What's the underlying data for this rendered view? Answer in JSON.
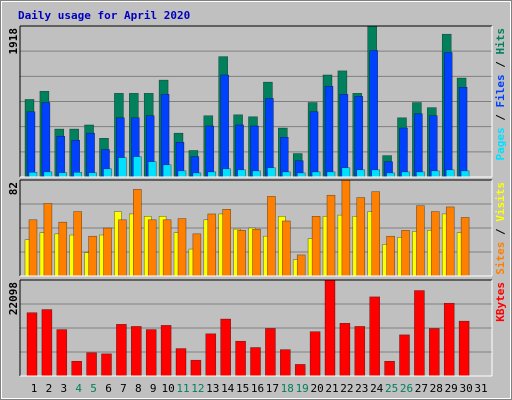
{
  "chart_data": [
    {
      "type": "bar",
      "title": "Daily usage for April 2020",
      "ylim": [
        0,
        1918
      ],
      "yticks": [
        1918
      ],
      "series": [
        {
          "name": "Hits",
          "color": "#00805c",
          "values": [
            985,
            1089,
            609,
            609,
            661,
            492,
            1063,
            1063,
            1063,
            1231,
            557,
            337,
            778,
            1529,
            790,
            765,
            1205,
            622,
            298,
            946,
            1296,
            1348,
            1063,
            1918,
            272,
            752,
            946,
            881,
            1814,
            1257,
            0
          ]
        },
        {
          "name": "Files",
          "color": "#0040ff",
          "values": [
            829,
            946,
            518,
            467,
            557,
            350,
            752,
            752,
            778,
            1050,
            441,
            259,
            648,
            1296,
            661,
            648,
            998,
            505,
            207,
            829,
            1153,
            1050,
            1024,
            1607,
            194,
            622,
            803,
            778,
            1581,
            1140,
            0
          ]
        },
        {
          "name": "Pages",
          "color": "#00e0ff",
          "values": [
            60,
            65,
            55,
            60,
            55,
            104,
            246,
            259,
            195,
            155,
            78,
            52,
            65,
            104,
            91,
            78,
            117,
            65,
            52,
            65,
            65,
            117,
            91,
            91,
            52,
            65,
            65,
            78,
            91,
            78,
            0
          ]
        }
      ]
    },
    {
      "type": "bar",
      "ylim": [
        0,
        82
      ],
      "yticks": [
        82
      ],
      "series": [
        {
          "name": "Visits",
          "color": "#ffff00",
          "values": [
            31,
            37,
            36,
            35,
            20,
            35,
            55,
            53,
            51,
            51,
            37,
            23,
            48,
            53,
            40,
            41,
            34,
            51,
            14,
            32,
            51,
            52,
            51,
            55,
            27,
            33,
            38,
            39,
            53,
            37,
            0
          ]
        },
        {
          "name": "Sites",
          "color": "#ff8000",
          "values": [
            48,
            62,
            46,
            55,
            34,
            41,
            48,
            74,
            48,
            48,
            49,
            36,
            53,
            57,
            39,
            40,
            68,
            47,
            18,
            51,
            69,
            82,
            67,
            72,
            34,
            39,
            60,
            55,
            59,
            50,
            0
          ]
        }
      ]
    },
    {
      "type": "bar",
      "ylim": [
        0,
        22098
      ],
      "yticks": [
        22098
      ],
      "categories": [
        "1",
        "2",
        "3",
        "4",
        "5",
        "6",
        "7",
        "8",
        "9",
        "10",
        "11",
        "12",
        "13",
        "14",
        "15",
        "16",
        "17",
        "18",
        "19",
        "20",
        "21",
        "22",
        "23",
        "24",
        "25",
        "26",
        "27",
        "28",
        "29",
        "30",
        "31"
      ],
      "category_colors": [
        "#000",
        "#000",
        "#000",
        "#00805c",
        "#00805c",
        "#000",
        "#000",
        "#000",
        "#000",
        "#000",
        "#00805c",
        "#00805c",
        "#000",
        "#000",
        "#000",
        "#000",
        "#000",
        "#00805c",
        "#00805c",
        "#000",
        "#000",
        "#000",
        "#000",
        "#000",
        "#00805c",
        "#00805c",
        "#000",
        "#000",
        "#000",
        "#000",
        "#000"
      ],
      "series": [
        {
          "name": "KBytes",
          "color": "#ff0000",
          "values": [
            14570,
            15298,
            10685,
            3400,
            5342,
            5100,
            11899,
            11413,
            10685,
            11656,
            6314,
            3643,
            9713,
            13113,
            8014,
            6556,
            10928,
            6071,
            2671,
            10199,
            22098,
            12142,
            11413,
            18213,
            3400,
            9471,
            19670,
            10928,
            16756,
            12627,
            0
          ]
        }
      ]
    }
  ]
}
